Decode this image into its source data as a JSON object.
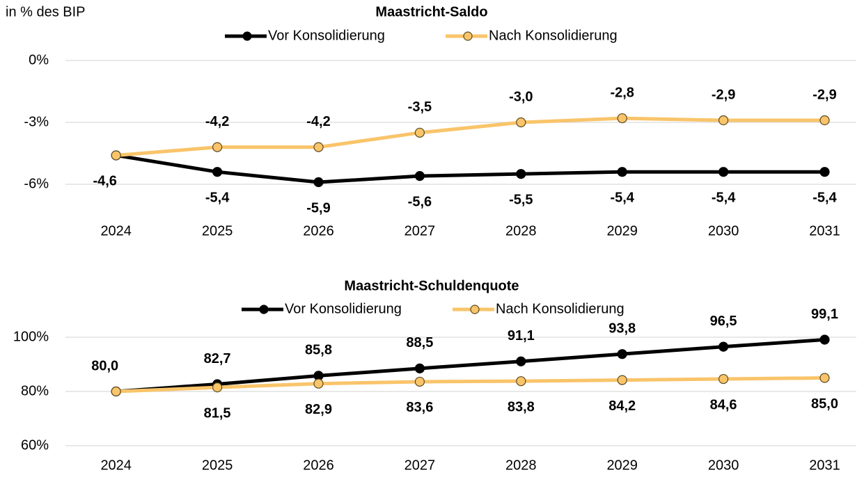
{
  "chart_data": [
    {
      "type": "line",
      "title": "Maastricht-Saldo",
      "ylabel": "in % des BIP",
      "categories": [
        "2024",
        "2025",
        "2026",
        "2027",
        "2028",
        "2029",
        "2030",
        "2031"
      ],
      "ylim": [
        -6,
        0
      ],
      "yticks": [
        {
          "value": 0,
          "label": "0%"
        },
        {
          "value": -3,
          "label": "-3%"
        },
        {
          "value": -6,
          "label": "-6%"
        }
      ],
      "grid": true,
      "series": [
        {
          "name": "Vor Konsolidierung",
          "color": "#000000",
          "values": [
            -4.6,
            -5.4,
            -5.9,
            -5.6,
            -5.5,
            -5.4,
            -5.4,
            -5.4
          ],
          "value_labels": [
            "-4,6",
            "-5,4",
            "-5,9",
            "-5,6",
            "-5,5",
            "-5,4",
            "-5,4",
            "-5,4"
          ]
        },
        {
          "name": "Nach Konsolidierung",
          "color": "#f9c46a",
          "values": [
            -4.6,
            -4.2,
            -4.2,
            -3.5,
            -3.0,
            -2.8,
            -2.9,
            -2.9
          ],
          "value_labels": [
            null,
            "-4,2",
            "-4,2",
            "-3,5",
            "-3,0",
            "-2,8",
            "-2,9",
            "-2,9"
          ]
        }
      ]
    },
    {
      "type": "line",
      "title": "Maastricht-Schuldenquote",
      "categories": [
        "2024",
        "2025",
        "2026",
        "2027",
        "2028",
        "2029",
        "2030",
        "2031"
      ],
      "ylim": [
        60,
        100
      ],
      "yticks": [
        {
          "value": 60,
          "label": "60%"
        },
        {
          "value": 80,
          "label": "80%"
        },
        {
          "value": 100,
          "label": "100%"
        }
      ],
      "grid": true,
      "series": [
        {
          "name": "Vor Konsolidierung",
          "color": "#000000",
          "values": [
            80.0,
            82.7,
            85.8,
            88.5,
            91.1,
            93.8,
            96.5,
            99.1
          ],
          "value_labels": [
            "80,0",
            "82,7",
            "85,8",
            "88,5",
            "91,1",
            "93,8",
            "96,5",
            "99,1"
          ]
        },
        {
          "name": "Nach Konsolidierung",
          "color": "#f9c46a",
          "values": [
            80.0,
            81.5,
            82.9,
            83.6,
            83.8,
            84.2,
            84.6,
            85.0
          ],
          "value_labels": [
            null,
            "81,5",
            "82,9",
            "83,6",
            "83,8",
            "84,2",
            "84,6",
            "85,0"
          ]
        }
      ]
    }
  ]
}
